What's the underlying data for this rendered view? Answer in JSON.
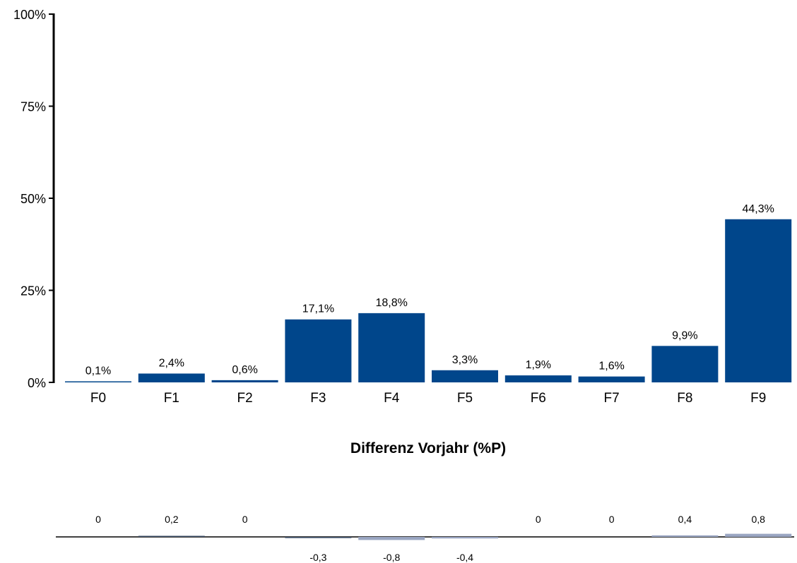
{
  "chart_data": [
    {
      "type": "bar",
      "categories": [
        "F0",
        "F1",
        "F2",
        "F3",
        "F4",
        "F5",
        "F6",
        "F7",
        "F8",
        "F9"
      ],
      "values": [
        0.1,
        2.4,
        0.6,
        17.1,
        18.8,
        3.3,
        1.9,
        1.6,
        9.9,
        44.3
      ],
      "value_labels": [
        "0,1%",
        "2,4%",
        "0,6%",
        "17,1%",
        "18,8%",
        "3,3%",
        "1,9%",
        "1,6%",
        "9,9%",
        "44,3%"
      ],
      "ylim": [
        0,
        100
      ],
      "yticks": [
        0,
        25,
        50,
        75,
        100
      ],
      "ytick_labels": [
        "0%",
        "25%",
        "50%",
        "75%",
        "100%"
      ],
      "grid": false,
      "bar_color": "#00468b"
    },
    {
      "type": "bar",
      "title": "Differenz Vorjahr (%P)",
      "categories": [
        "F0",
        "F1",
        "F2",
        "F3",
        "F4",
        "F5",
        "F6",
        "F7",
        "F8",
        "F9"
      ],
      "values": [
        0,
        0.2,
        0,
        -0.3,
        -0.8,
        -0.4,
        0,
        0,
        0.4,
        0.8
      ],
      "value_labels": [
        "0",
        "0,2",
        "0",
        "-0,3",
        "-0,8",
        "-0,4",
        "0",
        "0",
        "0,4",
        "0,8"
      ],
      "colors": {
        "near_zero": "#3c4e66",
        "large": "#9aa6c2",
        "baseline": "#000000"
      }
    }
  ]
}
